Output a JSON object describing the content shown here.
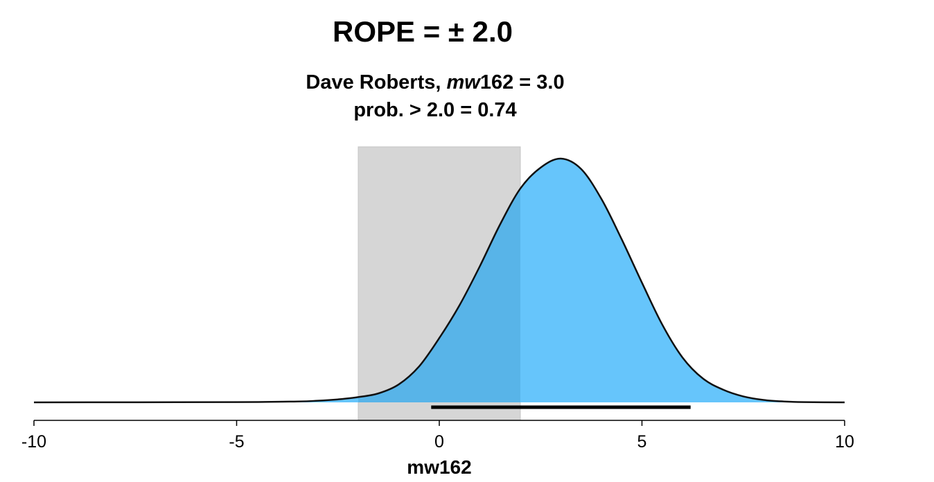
{
  "title": "ROPE = ± 2.0",
  "subtitle": {
    "name_prefix": "Dave Roberts, ",
    "var_italic": "mw",
    "value_suffix": "162 = 3.0",
    "prob_line": "prob. > 2.0 = 0.74"
  },
  "colors": {
    "density_fill": "#66c5fb",
    "density_overlap": "#58b4e8",
    "rope_fill": "#d6d6d6",
    "outline": "#111111"
  },
  "chart_data": {
    "type": "area",
    "title": "ROPE = ± 2.0",
    "xlabel": "mw162",
    "ylabel": "",
    "xlim": [
      -10,
      10
    ],
    "ylim": [
      0,
      0.165
    ],
    "x_ticks": [
      -10,
      -5,
      0,
      5,
      10
    ],
    "x_tick_labels": [
      "-10",
      "-5",
      "0",
      "5",
      "10"
    ],
    "grid": false,
    "rope": [
      -2.0,
      2.0
    ],
    "interval": [
      -0.2,
      6.2
    ],
    "series": [
      {
        "x": [
          -10,
          -5,
          -3.5,
          -3,
          -2.5,
          -2,
          -1.5,
          -1,
          -0.5,
          0,
          0.5,
          1,
          1.5,
          2,
          2.5,
          3,
          3.5,
          4,
          4.5,
          5,
          5.5,
          6,
          6.5,
          7,
          7.5,
          8,
          8.5,
          9,
          10
        ],
        "values": [
          0,
          0.0002,
          0.0006,
          0.0011,
          0.002,
          0.0035,
          0.006,
          0.012,
          0.024,
          0.043,
          0.065,
          0.091,
          0.119,
          0.143,
          0.157,
          0.163,
          0.156,
          0.136,
          0.109,
          0.08,
          0.052,
          0.03,
          0.016,
          0.0085,
          0.004,
          0.0016,
          0.0006,
          0.0002,
          0
        ]
      }
    ]
  }
}
